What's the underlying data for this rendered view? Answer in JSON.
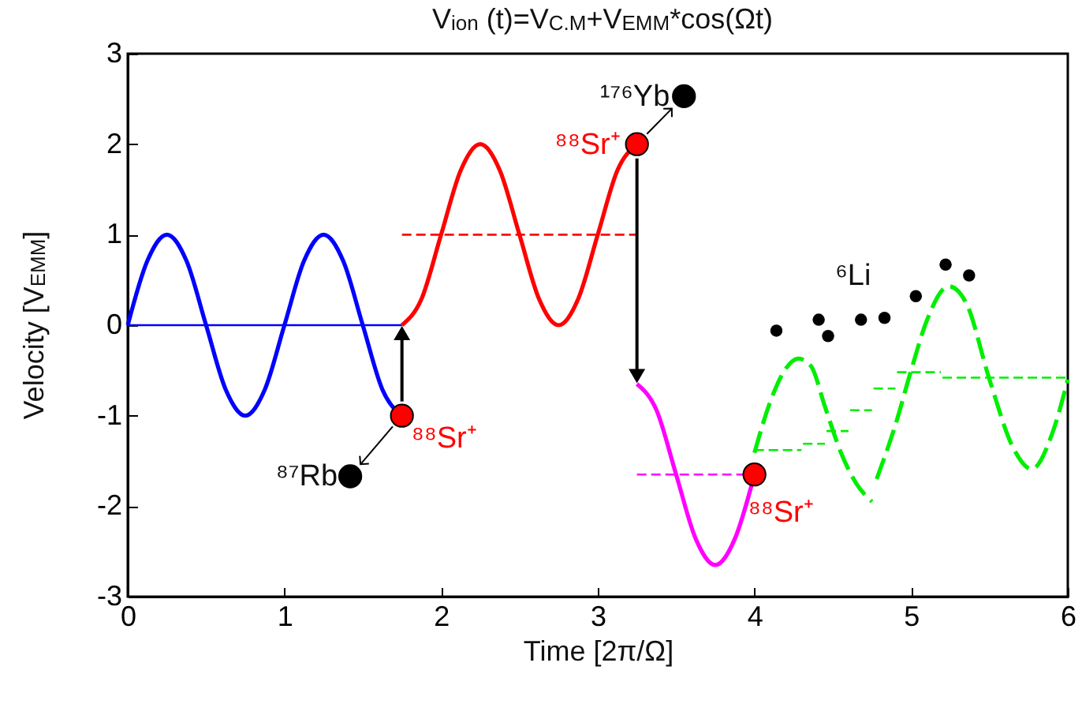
{
  "chart_data": {
    "type": "line",
    "title": "V$_{ion}$ (t)=V$_{C.M}$+V$_{EMM}$*cos(Ωt)",
    "xlabel": "Time [2π/Ω]",
    "ylabel": "Velocity [V$_{EMM}$]",
    "xlim": [
      0,
      6
    ],
    "ylim": [
      -3,
      3
    ],
    "xticks": [
      0,
      1,
      2,
      3,
      4,
      5,
      6
    ],
    "yticks": [
      -3,
      -2,
      -1,
      0,
      1,
      2,
      3
    ],
    "grid": false,
    "marker": "none",
    "annotations": [
      {
        "text": "⁸⁸Sr⁺",
        "x": 1.75,
        "y": -1
      },
      {
        "text": "⁸⁸Sr⁺",
        "x": 3.25,
        "y": 2
      },
      {
        "text": "⁸⁸Sr⁺",
        "x": 4,
        "y": -1.65
      },
      {
        "text": "⁸⁷Rb",
        "x": 1.42,
        "y": -1.67
      },
      {
        "text": "¹⁷⁶Yb",
        "x": 3.55,
        "y": 2.53
      },
      {
        "text": "⁶Li",
        "x": 4.68,
        "y": 0.06
      }
    ],
    "series": [
      {
        "color": "#0000ff",
        "line_style": "solid",
        "x": [
          0,
          0.125,
          0.25,
          0.375,
          0.5,
          0.625,
          0.75,
          0.875,
          1,
          1.125,
          1.25,
          1.375,
          1.5,
          1.625,
          1.75
        ],
        "values": [
          0,
          0.71,
          1,
          0.71,
          0,
          -0.71,
          -1,
          -0.71,
          0,
          0.71,
          1,
          0.71,
          0,
          -0.71,
          -1
        ]
      },
      {
        "color": "#0000ff",
        "line_style": "solid",
        "x": [
          0,
          1.75
        ],
        "values": [
          0,
          0
        ]
      },
      {
        "color": "#ff0000",
        "line_style": "solid",
        "x": [
          1.75,
          1.875,
          2,
          2.125,
          2.25,
          2.375,
          2.5,
          2.625,
          2.75,
          2.875,
          3,
          3.125,
          3.25
        ],
        "values": [
          0,
          0.29,
          1,
          1.71,
          2,
          1.71,
          1,
          0.29,
          0,
          0.29,
          1,
          1.71,
          2
        ]
      },
      {
        "color": "#ff0000",
        "line_style": "dashed",
        "x": [
          1.75,
          3.25
        ],
        "values": [
          1,
          1
        ]
      },
      {
        "color": "#ff00ff",
        "line_style": "solid",
        "x": [
          3.25,
          3.375,
          3.5,
          3.625,
          3.75,
          3.875,
          4
        ],
        "values": [
          -0.65,
          -0.94,
          -1.65,
          -2.36,
          -2.65,
          -2.36,
          -1.65
        ]
      },
      {
        "color": "#ff00ff",
        "line_style": "dashed",
        "x": [
          3.25,
          4
        ],
        "values": [
          -1.65,
          -1.65
        ]
      },
      {
        "color": "#00ee00",
        "line_style": "dashed",
        "x": [
          4,
          4.1,
          4.2,
          4.28,
          4.36,
          4.45,
          4.55,
          4.65,
          4.75
        ],
        "values": [
          -1.41,
          -0.85,
          -0.48,
          -0.37,
          -0.45,
          -0.9,
          -1.4,
          -1.75,
          -1.95
        ]
      },
      {
        "color": "#00ee00",
        "line_style": "dashed",
        "x": [
          4.78,
          4.9,
          5,
          5.1,
          5.24,
          5.35,
          5.5,
          5.65,
          5.77,
          5.9,
          6
        ],
        "values": [
          -1.7,
          -1.1,
          -0.5,
          0.05,
          0.43,
          0.25,
          -0.6,
          -1.35,
          -1.59,
          -1.2,
          -0.6
        ]
      },
      {
        "color": "#00ee00",
        "line_style": "dashed",
        "x": [
          4,
          4.3,
          4.305,
          4.31,
          4.45,
          4.455,
          4.46,
          4.6,
          4.605,
          4.61,
          4.75,
          4.755,
          4.76,
          4.9,
          4.905,
          4.91,
          5.19,
          5.195,
          5.2,
          6
        ],
        "values": [
          -1.38,
          -1.38,
          null,
          -1.31,
          -1.31,
          null,
          -1.17,
          -1.17,
          null,
          -0.94,
          -0.94,
          null,
          -0.7,
          -0.7,
          null,
          -0.52,
          -0.52,
          null,
          -0.58,
          -0.58
        ]
      },
      {
        "type": "scatter",
        "marker": "circle",
        "color": "#ff0000",
        "x": [
          1.75,
          3.25,
          4
        ],
        "values": [
          -1,
          2,
          -1.65
        ]
      },
      {
        "type": "scatter",
        "marker": "circle",
        "color": "#000000",
        "x": [
          1.42
        ],
        "values": [
          -1.67
        ]
      },
      {
        "type": "scatter",
        "marker": "circle",
        "color": "#000000",
        "x": [
          3.55
        ],
        "values": [
          2.53
        ]
      },
      {
        "type": "scatter",
        "marker": "circle",
        "color": "#000000",
        "x": [
          4.14,
          4.41,
          4.47,
          4.68,
          4.83,
          5.03,
          5.22,
          5.37
        ],
        "values": [
          -0.06,
          0.06,
          -0.12,
          0.06,
          0.08,
          0.32,
          0.67,
          0.55
        ]
      }
    ]
  }
}
